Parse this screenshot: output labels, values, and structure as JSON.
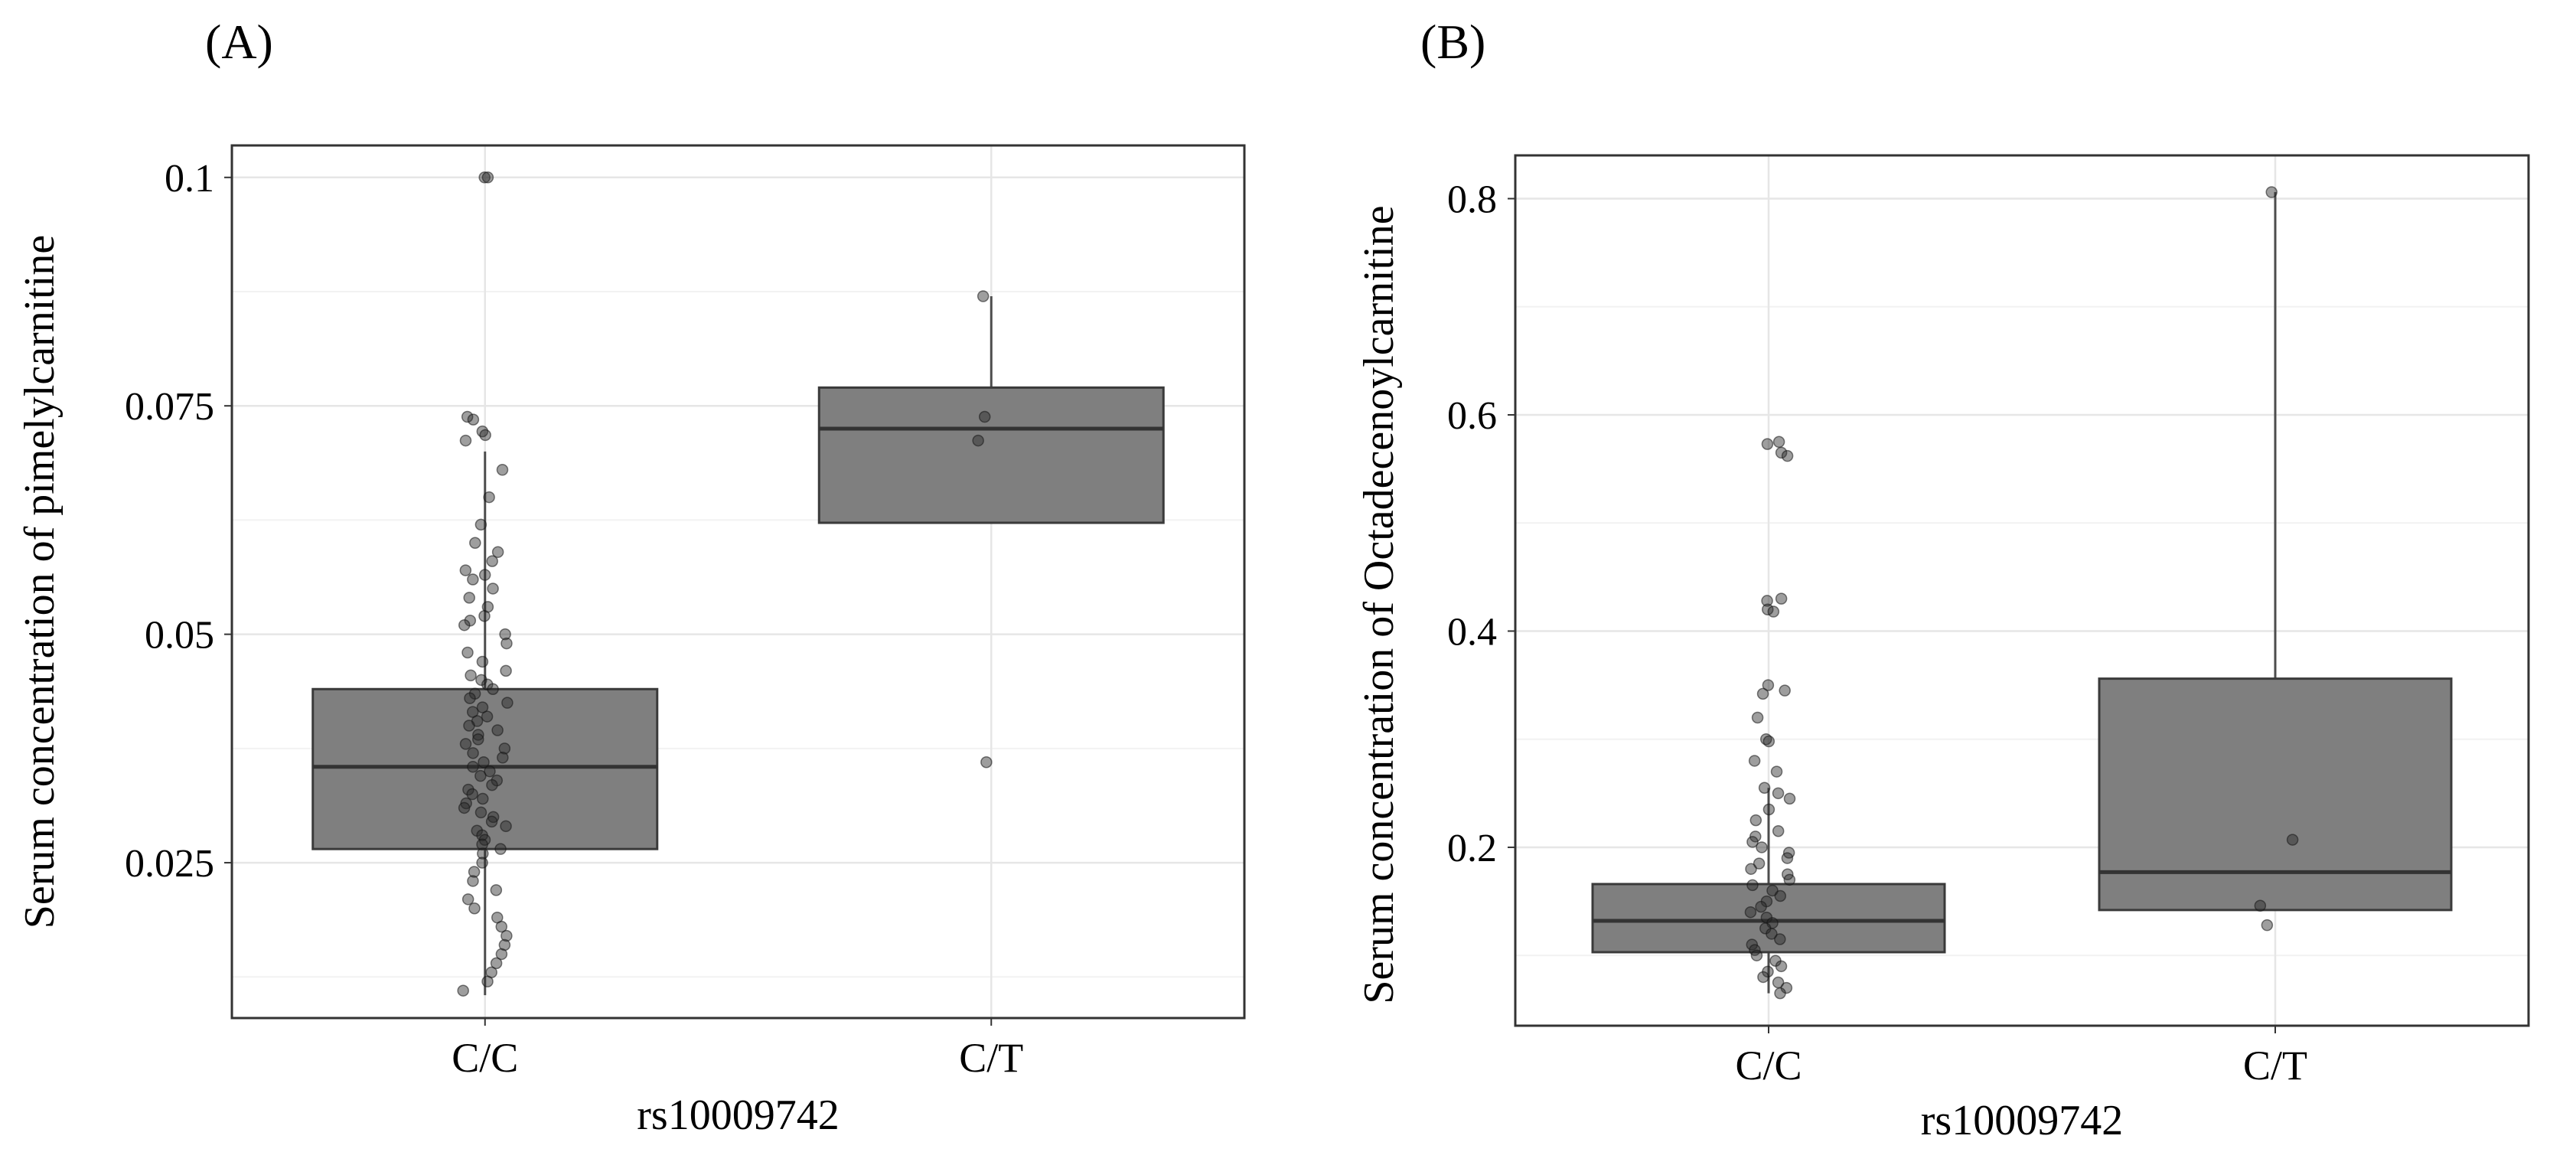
{
  "chart_data": [
    {
      "type": "box",
      "panel_label": "(A)",
      "xlabel": "rs10009742",
      "ylabel": "Serum concentration of pimelylcarnitine",
      "categories": [
        "C/C",
        "C/T"
      ],
      "ylim": [
        0.008,
        0.1035
      ],
      "yticks": [
        0.1,
        0.075,
        0.05,
        0.025
      ],
      "ytick_labels": [
        "0.1",
        "0.075",
        "0.05",
        "0.025"
      ],
      "boxes": [
        {
          "category": "C/C",
          "q1": 0.0265,
          "median": 0.0355,
          "q3": 0.044,
          "whisker_low": 0.0105,
          "whisker_high": 0.07
        },
        {
          "category": "C/T",
          "q1": 0.0622,
          "median": 0.0725,
          "q3": 0.077,
          "whisker_low": 0.0622,
          "whisker_high": 0.087
        }
      ],
      "points": [
        {
          "category": "C/C",
          "values": [
            0.1,
            0.1,
            0.0738,
            0.0735,
            0.0722,
            0.0718,
            0.0712,
            0.068,
            0.065,
            0.062,
            0.06,
            0.059,
            0.058,
            0.057,
            0.0565,
            0.056,
            0.055,
            0.054,
            0.053,
            0.052,
            0.0515,
            0.051,
            0.05,
            0.049,
            0.048,
            0.047,
            0.046,
            0.0455,
            0.045,
            0.0445,
            0.044,
            0.0435,
            0.043,
            0.0425,
            0.042,
            0.0415,
            0.041,
            0.0405,
            0.04,
            0.0395,
            0.039,
            0.0385,
            0.038,
            0.0375,
            0.037,
            0.0365,
            0.036,
            0.0355,
            0.035,
            0.0345,
            0.034,
            0.0335,
            0.033,
            0.0325,
            0.032,
            0.0315,
            0.031,
            0.0305,
            0.03,
            0.0295,
            0.029,
            0.0285,
            0.028,
            0.0275,
            0.027,
            0.0265,
            0.026,
            0.025,
            0.024,
            0.023,
            0.022,
            0.021,
            0.02,
            0.019,
            0.018,
            0.017,
            0.016,
            0.015,
            0.014,
            0.013,
            0.012,
            0.011
          ]
        },
        {
          "category": "C/T",
          "values": [
            0.087,
            0.0738,
            0.0712,
            0.036
          ]
        }
      ]
    },
    {
      "type": "box",
      "panel_label": "(B)",
      "xlabel": "rs10009742",
      "ylabel": "Serum concentration of Octadecenoylcarnitine",
      "categories": [
        "C/C",
        "C/T"
      ],
      "ylim": [
        0.035,
        0.84
      ],
      "yticks": [
        0.8,
        0.6,
        0.4,
        0.2
      ],
      "ytick_labels": [
        "0.8",
        "0.6",
        "0.4",
        "0.2"
      ],
      "boxes": [
        {
          "category": "C/C",
          "q1": 0.103,
          "median": 0.132,
          "q3": 0.166,
          "whisker_low": 0.065,
          "whisker_high": 0.255
        },
        {
          "category": "C/T",
          "q1": 0.142,
          "median": 0.177,
          "q3": 0.356,
          "whisker_low": 0.142,
          "whisker_high": 0.806
        }
      ],
      "points": [
        {
          "category": "C/C",
          "values": [
            0.575,
            0.573,
            0.565,
            0.562,
            0.43,
            0.428,
            0.42,
            0.418,
            0.35,
            0.345,
            0.342,
            0.32,
            0.3,
            0.298,
            0.28,
            0.27,
            0.255,
            0.25,
            0.245,
            0.235,
            0.225,
            0.215,
            0.21,
            0.205,
            0.2,
            0.195,
            0.19,
            0.185,
            0.18,
            0.175,
            0.17,
            0.165,
            0.16,
            0.155,
            0.15,
            0.145,
            0.14,
            0.135,
            0.13,
            0.125,
            0.12,
            0.115,
            0.11,
            0.105,
            0.1,
            0.095,
            0.09,
            0.085,
            0.08,
            0.075,
            0.07,
            0.065
          ]
        },
        {
          "category": "C/T",
          "values": [
            0.806,
            0.207,
            0.146,
            0.128
          ]
        }
      ]
    }
  ]
}
